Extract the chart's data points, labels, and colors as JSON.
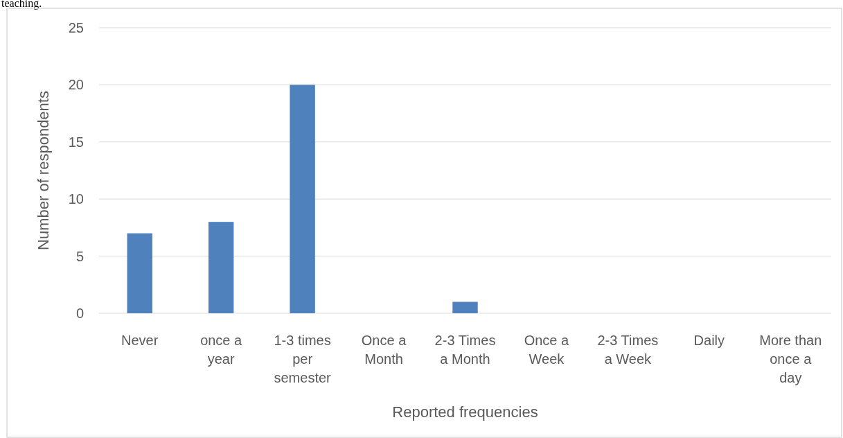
{
  "chart_data": {
    "type": "bar",
    "xlabel": "Reported frequencies",
    "ylabel": "Number of respondents",
    "annotations": [
      "teaching."
    ],
    "categories": [
      "Never",
      "once a year",
      "1-3 times per semester",
      "Once a Month",
      "2-3 Times a Month",
      "Once a Week",
      "2-3 Times a Week",
      "Daily",
      "More than once a day"
    ],
    "values": [
      7,
      8,
      20,
      0,
      1,
      0,
      0,
      0,
      0
    ],
    "color": "#4f81bd",
    "ylim": [
      0,
      25
    ],
    "yticks": [
      0,
      5,
      10,
      15,
      20,
      25
    ],
    "grid": "y"
  }
}
